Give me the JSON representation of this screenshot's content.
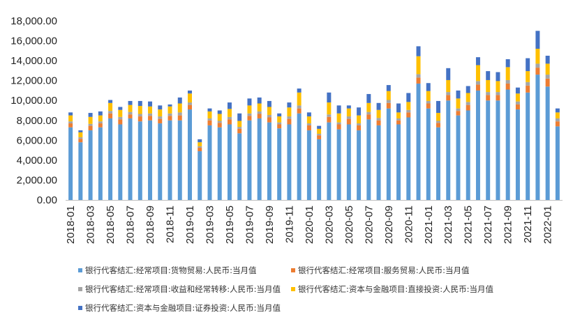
{
  "chart_data": {
    "type": "bar",
    "stacked": true,
    "title": "",
    "xlabel": "",
    "ylabel": "",
    "ylim": [
      0,
      18000
    ],
    "yticks": [
      "0.00",
      "2,000.00",
      "4,000.00",
      "6,000.00",
      "8,000.00",
      "10,000.00",
      "12,000.00",
      "14,000.00",
      "16,000.00",
      "18,000.00"
    ],
    "categories": [
      "2018-01",
      "2018-02",
      "2018-03",
      "2018-04",
      "2018-05",
      "2018-06",
      "2018-07",
      "2018-08",
      "2018-09",
      "2018-10",
      "2018-11",
      "2018-12",
      "2019-01",
      "2019-02",
      "2019-03",
      "2019-04",
      "2019-05",
      "2019-06",
      "2019-07",
      "2019-08",
      "2019-09",
      "2019-10",
      "2019-11",
      "2019-12",
      "2020-01",
      "2020-02",
      "2020-03",
      "2020-04",
      "2020-05",
      "2020-06",
      "2020-07",
      "2020-08",
      "2020-09",
      "2020-10",
      "2020-11",
      "2020-12",
      "2021-01",
      "2021-02",
      "2021-03",
      "2021-04",
      "2021-05",
      "2021-06",
      "2021-07",
      "2021-08",
      "2021-09",
      "2021-10",
      "2021-11",
      "2021-12",
      "2022-01",
      "2022-02"
    ],
    "xtick_labels": [
      "2018-01",
      "2018-03",
      "2018-05",
      "2018-07",
      "2018-09",
      "2018-11",
      "2019-01",
      "2019-03",
      "2019-05",
      "2019-07",
      "2019-09",
      "2019-11",
      "2020-01",
      "2020-03",
      "2020-05",
      "2020-07",
      "2020-09",
      "2020-11",
      "2021-01",
      "2021-03",
      "2021-05",
      "2021-07",
      "2021-09",
      "2021-11",
      "2022-01"
    ],
    "series": [
      {
        "name": "银行代客结汇:经常项目:货物贸易:人民币:当月值",
        "color": "#5b9bd5",
        "values": [
          7300,
          5800,
          7000,
          7300,
          8200,
          7600,
          8200,
          7900,
          8000,
          7700,
          8000,
          8000,
          9100,
          4900,
          7500,
          7300,
          7600,
          6700,
          8000,
          8200,
          7800,
          7200,
          7600,
          8700,
          7000,
          6100,
          7800,
          7100,
          7600,
          7000,
          8100,
          7500,
          9200,
          7600,
          8300,
          11700,
          9200,
          7300,
          10000,
          8500,
          9000,
          11000,
          10000,
          10000,
          11100,
          9100,
          10800,
          12600,
          11400,
          7400
        ]
      },
      {
        "name": "银行代客结汇:经常项目:服务贸易:人民币:当月值",
        "color": "#ed7d31",
        "values": [
          400,
          350,
          450,
          400,
          500,
          500,
          400,
          500,
          450,
          450,
          450,
          500,
          450,
          350,
          500,
          450,
          500,
          450,
          450,
          450,
          500,
          400,
          550,
          500,
          500,
          400,
          550,
          500,
          550,
          500,
          500,
          500,
          550,
          400,
          500,
          600,
          500,
          450,
          550,
          450,
          550,
          600,
          550,
          550,
          600,
          500,
          700,
          700,
          800,
          500
        ]
      },
      {
        "name": "银行代客结汇:经常项目:收益和经常转移:人民币:当月值",
        "color": "#a5a5a5",
        "values": [
          200,
          150,
          200,
          200,
          250,
          250,
          250,
          250,
          250,
          250,
          250,
          300,
          250,
          150,
          200,
          200,
          250,
          200,
          250,
          250,
          250,
          200,
          250,
          300,
          200,
          150,
          250,
          200,
          250,
          200,
          250,
          250,
          300,
          200,
          250,
          350,
          250,
          200,
          300,
          250,
          300,
          350,
          300,
          300,
          350,
          300,
          350,
          400,
          400,
          300
        ]
      },
      {
        "name": "银行代客结汇:资本与金融项目:直接投资:人民币:当月值",
        "color": "#ffc000",
        "values": [
          600,
          500,
          700,
          600,
          800,
          700,
          700,
          800,
          700,
          700,
          700,
          900,
          900,
          400,
          700,
          700,
          800,
          600,
          800,
          800,
          800,
          600,
          900,
          1300,
          700,
          500,
          1200,
          900,
          800,
          800,
          900,
          800,
          900,
          600,
          800,
          1800,
          1000,
          800,
          1200,
          1000,
          900,
          1600,
          1200,
          1100,
          1300,
          800,
          1100,
          1500,
          1100,
          600
        ]
      },
      {
        "name": "银行代客结汇:资本与金融项目:证券投资:人民币:当月值",
        "color": "#4472c4",
        "values": [
          300,
          200,
          400,
          400,
          300,
          300,
          400,
          500,
          500,
          400,
          200,
          600,
          300,
          300,
          300,
          350,
          650,
          750,
          700,
          600,
          600,
          300,
          500,
          400,
          400,
          300,
          1000,
          800,
          300,
          800,
          900,
          700,
          600,
          900,
          900,
          1000,
          800,
          1200,
          1200,
          800,
          700,
          800,
          900,
          900,
          800,
          600,
          1300,
          1800,
          800,
          400
        ]
      }
    ],
    "legend_position": "bottom",
    "grid": false
  }
}
